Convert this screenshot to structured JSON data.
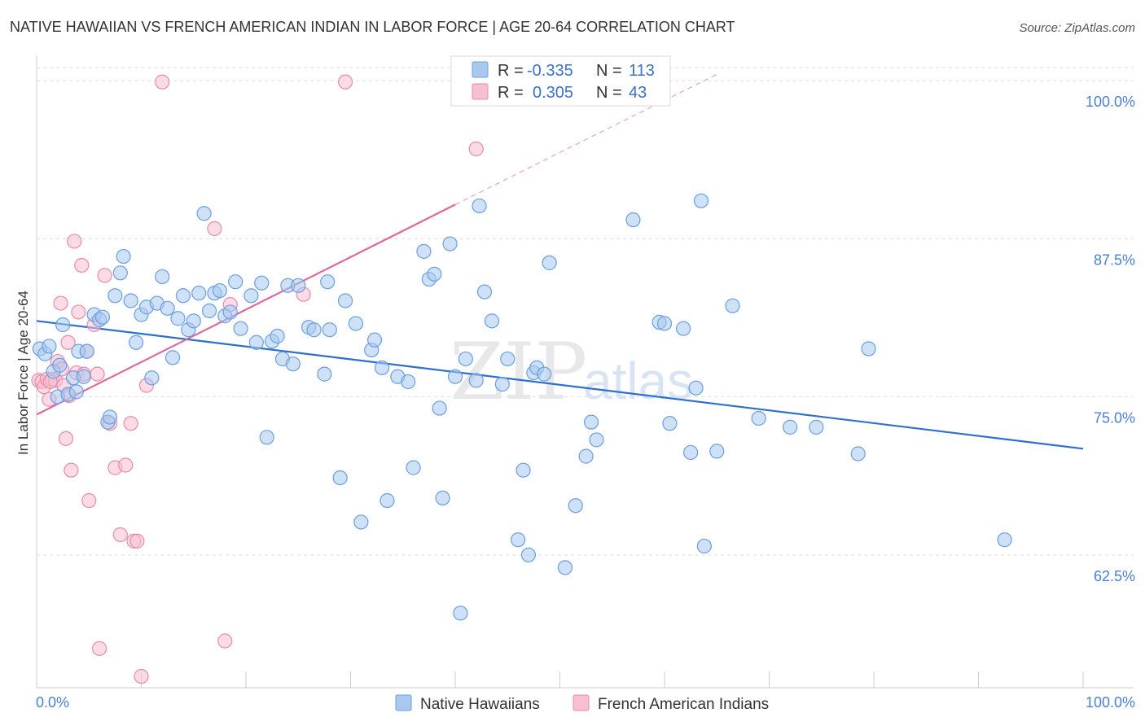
{
  "title": "NATIVE HAWAIIAN VS FRENCH AMERICAN INDIAN IN LABOR FORCE | AGE 20-64 CORRELATION CHART",
  "source": "Source: ZipAtlas.com",
  "watermark": {
    "zip": "ZIP",
    "atlas": "atlas"
  },
  "colors": {
    "blue_fill": "#a8c8ee",
    "blue_stroke": "#6a9fe0",
    "blue_line": "#2e6fce",
    "pink_fill": "#f7c0d2",
    "pink_stroke": "#e88aaa",
    "pink_line": "#e0679a",
    "tick_text": "#4a7fd0",
    "grid": "#dddddd"
  },
  "legend": {
    "rows": [
      {
        "r_label": "R =",
        "r_value": "-0.335",
        "n_label": "N =",
        "n_value": "113"
      },
      {
        "r_label": "R =",
        "r_value": "0.305",
        "n_label": "N =",
        "n_value": "43"
      }
    ]
  },
  "chart_data": {
    "type": "scatter",
    "title": "NATIVE HAWAIIAN VS FRENCH AMERICAN INDIAN IN LABOR FORCE | AGE 20-64 CORRELATION CHART",
    "xlabel": "",
    "ylabel": "In Labor Force | Age 20-64",
    "xlim": [
      0,
      100
    ],
    "ylim": [
      52,
      102
    ],
    "x_tick_labels": [
      "0.0%",
      "100.0%"
    ],
    "y_ticks": [
      62.5,
      75.0,
      87.5,
      100.0
    ],
    "y_tick_labels": [
      "62.5%",
      "75.0%",
      "87.5%",
      "100.0%"
    ],
    "grid": true,
    "legend_position": "bottom",
    "series": [
      {
        "name": "Native Hawaiians",
        "color": "#a8c8ee",
        "trend": {
          "x": [
            0,
            100
          ],
          "y": [
            81.0,
            70.9
          ]
        },
        "points": [
          [
            0.3,
            78.8
          ],
          [
            0.8,
            78.4
          ],
          [
            1.2,
            79.0
          ],
          [
            1.6,
            77.0
          ],
          [
            2.0,
            75.0
          ],
          [
            2.2,
            77.5
          ],
          [
            2.5,
            80.7
          ],
          [
            3.0,
            75.2
          ],
          [
            3.5,
            76.5
          ],
          [
            3.8,
            75.4
          ],
          [
            4.0,
            78.6
          ],
          [
            4.5,
            76.6
          ],
          [
            4.8,
            78.6
          ],
          [
            5.5,
            81.5
          ],
          [
            6.0,
            81.1
          ],
          [
            6.3,
            81.3
          ],
          [
            6.8,
            73.0
          ],
          [
            7.0,
            73.4
          ],
          [
            7.5,
            83.0
          ],
          [
            8.0,
            84.8
          ],
          [
            8.3,
            86.1
          ],
          [
            9.0,
            82.6
          ],
          [
            9.5,
            79.3
          ],
          [
            10.0,
            81.5
          ],
          [
            10.5,
            82.1
          ],
          [
            11.0,
            76.5
          ],
          [
            11.5,
            82.4
          ],
          [
            12.0,
            84.5
          ],
          [
            12.5,
            82.0
          ],
          [
            13.0,
            78.1
          ],
          [
            13.5,
            81.2
          ],
          [
            14.0,
            83.0
          ],
          [
            14.5,
            80.3
          ],
          [
            15.0,
            81.0
          ],
          [
            15.5,
            83.2
          ],
          [
            16.0,
            89.5
          ],
          [
            16.5,
            81.8
          ],
          [
            17.0,
            83.2
          ],
          [
            17.5,
            83.4
          ],
          [
            18.0,
            81.4
          ],
          [
            18.5,
            81.7
          ],
          [
            19.0,
            84.1
          ],
          [
            19.5,
            80.4
          ],
          [
            20.5,
            83.0
          ],
          [
            21.0,
            79.3
          ],
          [
            21.5,
            84.0
          ],
          [
            22.0,
            71.8
          ],
          [
            22.5,
            79.4
          ],
          [
            23.0,
            79.8
          ],
          [
            23.5,
            78.0
          ],
          [
            24.0,
            83.8
          ],
          [
            24.5,
            77.6
          ],
          [
            25.0,
            83.8
          ],
          [
            26.0,
            80.5
          ],
          [
            26.5,
            80.3
          ],
          [
            27.5,
            76.8
          ],
          [
            27.8,
            84.1
          ],
          [
            28.0,
            80.3
          ],
          [
            29.0,
            68.6
          ],
          [
            29.5,
            82.6
          ],
          [
            30.5,
            80.8
          ],
          [
            31.0,
            65.1
          ],
          [
            32.0,
            78.7
          ],
          [
            32.3,
            79.5
          ],
          [
            33.0,
            77.3
          ],
          [
            33.5,
            66.8
          ],
          [
            34.5,
            76.6
          ],
          [
            35.5,
            76.2
          ],
          [
            36.0,
            69.4
          ],
          [
            37.0,
            86.5
          ],
          [
            37.5,
            84.3
          ],
          [
            38.0,
            84.7
          ],
          [
            38.5,
            74.1
          ],
          [
            38.8,
            67.0
          ],
          [
            39.5,
            87.1
          ],
          [
            40.0,
            76.6
          ],
          [
            40.5,
            57.9
          ],
          [
            41.0,
            78.0
          ],
          [
            42.0,
            76.3
          ],
          [
            42.3,
            90.1
          ],
          [
            42.8,
            83.3
          ],
          [
            43.5,
            81.0
          ],
          [
            44.5,
            76.0
          ],
          [
            45.0,
            78.0
          ],
          [
            46.0,
            63.7
          ],
          [
            46.5,
            69.2
          ],
          [
            47.0,
            62.5
          ],
          [
            47.5,
            76.9
          ],
          [
            47.8,
            77.3
          ],
          [
            48.5,
            76.8
          ],
          [
            49.0,
            85.6
          ],
          [
            50.5,
            61.5
          ],
          [
            51.5,
            66.4
          ],
          [
            52.5,
            70.3
          ],
          [
            53.0,
            73.0
          ],
          [
            53.5,
            71.6
          ],
          [
            57.0,
            89.0
          ],
          [
            59.5,
            80.9
          ],
          [
            60.0,
            80.8
          ],
          [
            60.5,
            72.9
          ],
          [
            61.8,
            80.4
          ],
          [
            62.5,
            70.6
          ],
          [
            63.0,
            75.7
          ],
          [
            63.5,
            90.5
          ],
          [
            63.8,
            63.2
          ],
          [
            65.0,
            70.7
          ],
          [
            66.5,
            82.2
          ],
          [
            69.0,
            73.3
          ],
          [
            72.0,
            72.6
          ],
          [
            74.5,
            72.6
          ],
          [
            78.5,
            70.5
          ],
          [
            79.5,
            78.8
          ],
          [
            92.5,
            63.7
          ]
        ]
      },
      {
        "name": "French American Indians",
        "color": "#f7c0d2",
        "trend": {
          "x": [
            0,
            40
          ],
          "y": [
            73.6,
            90.2
          ]
        },
        "trend_dashed": {
          "x": [
            40,
            65
          ],
          "y": [
            90.2,
            100.5
          ]
        },
        "points": [
          [
            0.2,
            76.3
          ],
          [
            0.5,
            76.2
          ],
          [
            0.7,
            75.8
          ],
          [
            1.0,
            76.4
          ],
          [
            1.2,
            74.8
          ],
          [
            1.5,
            76.4
          ],
          [
            1.8,
            76.3
          ],
          [
            2.0,
            77.8
          ],
          [
            2.3,
            82.4
          ],
          [
            2.6,
            75.9
          ],
          [
            2.8,
            71.7
          ],
          [
            3.0,
            79.3
          ],
          [
            3.3,
            69.2
          ],
          [
            3.6,
            87.3
          ],
          [
            3.8,
            76.9
          ],
          [
            4.0,
            81.7
          ],
          [
            4.3,
            85.4
          ],
          [
            4.5,
            76.8
          ],
          [
            4.8,
            78.6
          ],
          [
            5.0,
            66.8
          ],
          [
            5.5,
            80.7
          ],
          [
            5.8,
            76.8
          ],
          [
            6.0,
            55.1
          ],
          [
            6.5,
            84.6
          ],
          [
            7.0,
            72.9
          ],
          [
            7.5,
            69.4
          ],
          [
            8.0,
            64.1
          ],
          [
            8.5,
            69.6
          ],
          [
            9.0,
            72.9
          ],
          [
            9.3,
            63.6
          ],
          [
            9.6,
            63.6
          ],
          [
            10.0,
            52.9
          ],
          [
            10.5,
            75.9
          ],
          [
            12.0,
            99.9
          ],
          [
            17.0,
            88.3
          ],
          [
            18.0,
            55.7
          ],
          [
            18.5,
            82.3
          ],
          [
            25.5,
            83.1
          ],
          [
            29.5,
            99.9
          ],
          [
            42.0,
            94.6
          ],
          [
            1.3,
            76.2
          ],
          [
            2.4,
            77.2
          ],
          [
            3.1,
            75.1
          ]
        ]
      }
    ]
  }
}
